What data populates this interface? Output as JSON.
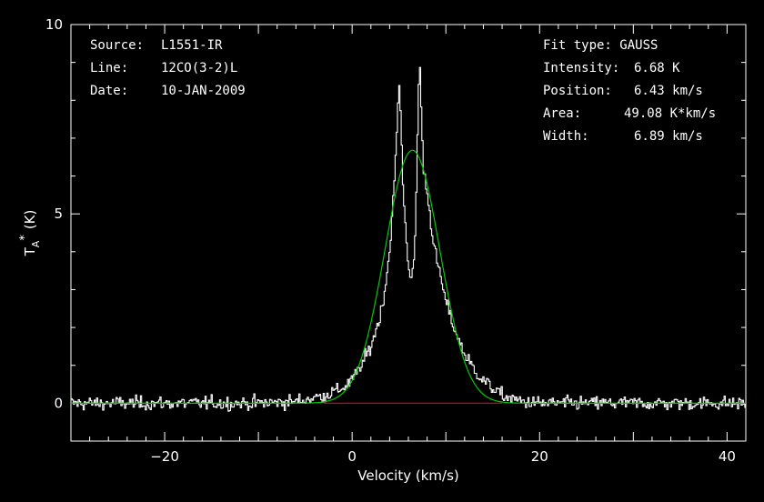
{
  "header_left": [
    {
      "key": "Source:",
      "value": "L1551-IR"
    },
    {
      "key": "Line:",
      "value": "12CO(3-2)L"
    },
    {
      "key": "Date:",
      "value": "10-JAN-2009"
    }
  ],
  "header_right": {
    "fit_type": "Fit type: GAUSS",
    "rows": [
      {
        "key": "Intensity:",
        "value": "6.68 K"
      },
      {
        "key": "Position:",
        "value": "6.43 km/s"
      },
      {
        "key": "Area:",
        "value": "49.08 K*km/s"
      },
      {
        "key": "Width:",
        "value": "6.89 km/s"
      }
    ]
  },
  "colors": {
    "background": "#000000",
    "axes": "#ffffff",
    "spectrum": "#ffffff",
    "fit": "#00cc00",
    "baseline": "#dd0000"
  },
  "chart_data": {
    "type": "line",
    "xlabel": "Velocity (km/s)",
    "ylabel_main": "T",
    "ylabel_sub": "A",
    "ylabel_sup": "*",
    "ylabel_unit": "(K)",
    "xlim": [
      -30,
      42
    ],
    "ylim": [
      -1,
      10
    ],
    "xticks": [
      -20,
      0,
      20,
      40
    ],
    "yticks": [
      0,
      5,
      10
    ],
    "grid": false,
    "fit": {
      "amplitude": 6.68,
      "center": 6.43,
      "fwhm": 6.89,
      "area": 49.08
    },
    "baseline_range": [
      -3,
      16
    ],
    "spectrum_profile": {
      "v": [
        -30,
        -10,
        -6,
        -3,
        -1,
        0,
        1,
        2,
        3,
        3.5,
        4,
        4.5,
        4.8,
        5.0,
        5.2,
        5.4,
        5.6,
        5.8,
        6.0,
        6.3,
        6.6,
        6.8,
        7.0,
        7.2,
        7.4,
        7.6,
        7.8,
        8.0,
        8.5,
        9,
        10,
        11,
        12,
        13,
        14,
        15,
        16,
        18,
        20,
        42
      ],
      "t": [
        0,
        0,
        0.05,
        0.2,
        0.4,
        0.6,
        1.0,
        1.5,
        2.3,
        3.0,
        4.0,
        5.8,
        7.2,
        8.6,
        7.5,
        6.0,
        5.0,
        4.3,
        3.7,
        3.3,
        3.6,
        5.0,
        7.2,
        9.3,
        7.6,
        6.2,
        5.9,
        5.6,
        4.6,
        3.8,
        2.7,
        1.9,
        1.3,
        0.9,
        0.6,
        0.4,
        0.2,
        0.05,
        0,
        0
      ]
    },
    "noise_rms": 0.09
  }
}
